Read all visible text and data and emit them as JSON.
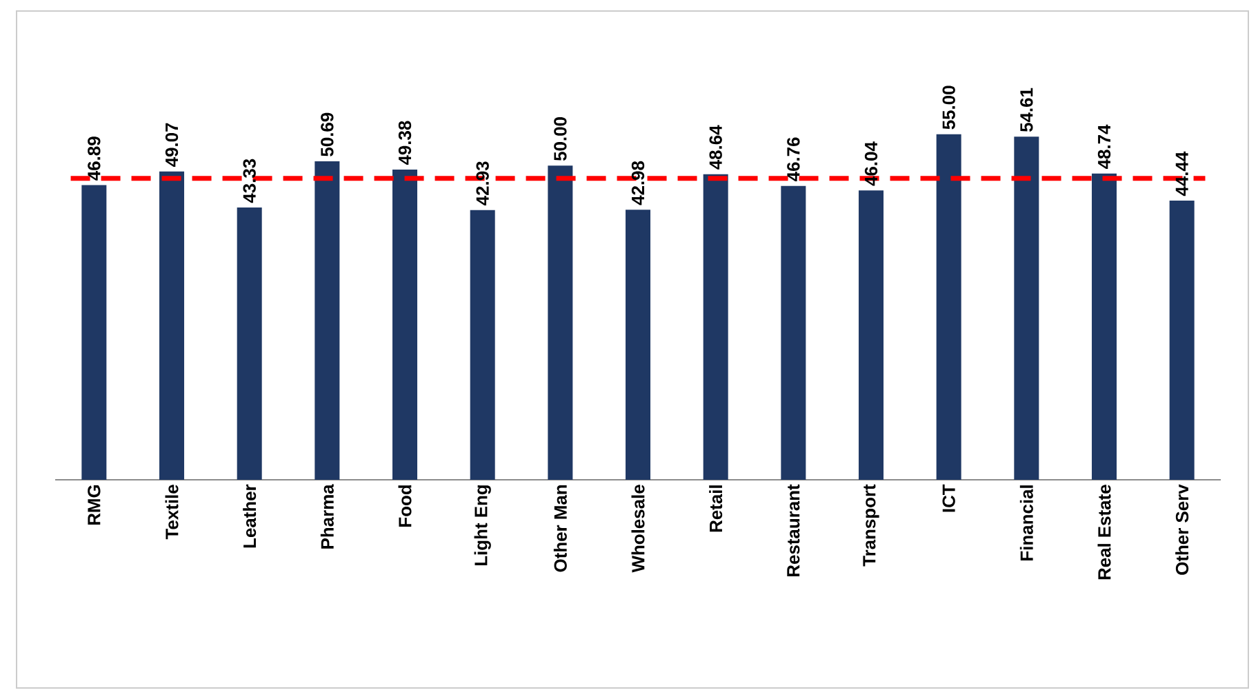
{
  "chart_data": {
    "type": "bar",
    "categories": [
      "RMG",
      "Textile",
      "Leather",
      "Pharma",
      "Food",
      "Light Eng",
      "Other Man",
      "Wholesale",
      "Retail",
      "Restaurant",
      "Transport",
      "ICT",
      "Financial",
      "Real Estate",
      "Other Serv"
    ],
    "values": [
      46.89,
      49.07,
      43.33,
      50.69,
      49.38,
      42.93,
      50.0,
      42.98,
      48.64,
      46.76,
      46.04,
      55.0,
      54.61,
      48.74,
      44.44
    ],
    "value_labels": [
      "46.89",
      "49.07",
      "43.33",
      "50.69",
      "49.38",
      "42.93",
      "50.00",
      "42.98",
      "48.64",
      "46.76",
      "46.04",
      "55.00",
      "54.61",
      "48.74",
      "44.44"
    ],
    "color": "#1f3864",
    "ref_lines": [
      {
        "axis": "y",
        "value": 47.97,
        "color": "#ff0000",
        "line_style": "dashed"
      }
    ],
    "grid": false
  }
}
